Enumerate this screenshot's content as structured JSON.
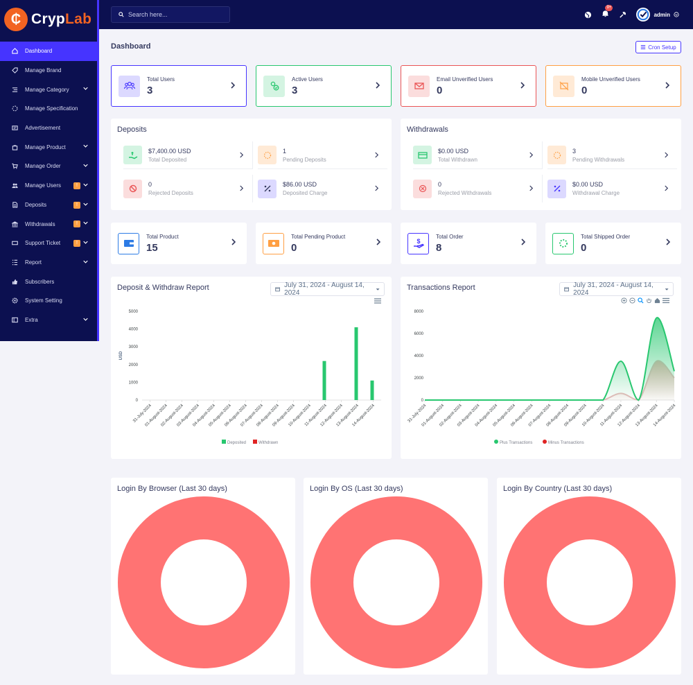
{
  "brand": {
    "part1": "Cryp",
    "part2": "Lab",
    "mark": "₵"
  },
  "search": {
    "placeholder": "Search here..."
  },
  "topbar": {
    "notif_count": "9+",
    "user": "admin"
  },
  "sidebar": {
    "items": [
      {
        "label": "Dashboard",
        "icon": "home-icon"
      },
      {
        "label": "Manage Brand",
        "icon": "tag-icon"
      },
      {
        "label": "Manage Category",
        "icon": "list-icon"
      },
      {
        "label": "Manage Specification",
        "icon": "spinner-icon"
      },
      {
        "label": "Advertisement",
        "icon": "ad-icon"
      },
      {
        "label": "Manage Product",
        "icon": "bag-icon"
      },
      {
        "label": "Manage Order",
        "icon": "cart-icon"
      },
      {
        "label": "Manage Users",
        "icon": "users-icon"
      },
      {
        "label": "Deposits",
        "icon": "file-icon"
      },
      {
        "label": "Withdrawals",
        "icon": "bank-icon"
      },
      {
        "label": "Support Ticket",
        "icon": "ticket-icon"
      },
      {
        "label": "Report",
        "icon": "report-icon"
      },
      {
        "label": "Subscribers",
        "icon": "thumbs-up-icon"
      },
      {
        "label": "System Setting",
        "icon": "gear-icon"
      },
      {
        "label": "Extra",
        "icon": "extra-icon"
      }
    ]
  },
  "page": {
    "title": "Dashboard",
    "cron_label": "Cron Setup"
  },
  "stats": {
    "total_users": {
      "label": "Total Users",
      "value": "3"
    },
    "active_users": {
      "label": "Active Users",
      "value": "3"
    },
    "email_unverified": {
      "label": "Email Unverified Users",
      "value": "0"
    },
    "mobile_unverified": {
      "label": "Mobile Unverified Users",
      "value": "0"
    },
    "total_product": {
      "label": "Total Product",
      "value": "15"
    },
    "total_pending_product": {
      "label": "Total Pending Product",
      "value": "0"
    },
    "total_order": {
      "label": "Total Order",
      "value": "8"
    },
    "total_shipped_order": {
      "label": "Total Shipped Order",
      "value": "0"
    }
  },
  "deposits": {
    "title": "Deposits",
    "total": {
      "value": "$7,400.00 USD",
      "label": "Total Deposited"
    },
    "pending": {
      "value": "1",
      "label": "Pending Deposits"
    },
    "rejected": {
      "value": "0",
      "label": "Rejected Deposits"
    },
    "charge": {
      "value": "$86.00 USD",
      "label": "Deposited Charge"
    }
  },
  "withdrawals": {
    "title": "Withdrawals",
    "total": {
      "value": "$0.00 USD",
      "label": "Total Withdrawn"
    },
    "pending": {
      "value": "3",
      "label": "Pending Withdrawals"
    },
    "rejected": {
      "value": "0",
      "label": "Rejected Withdrawals"
    },
    "charge": {
      "value": "$0.00 USD",
      "label": "Withdrawal Charge"
    }
  },
  "reports": {
    "deposit_title": "Deposit & Withdraw Report",
    "transactions_title": "Transactions Report",
    "date_range": "July 31, 2024 - August 14, 2024"
  },
  "login": {
    "browser": "Login By Browser (Last 30 days)",
    "os": "Login By OS (Last 30 days)",
    "country": "Login By Country (Last 30 days)"
  },
  "chart_data": [
    {
      "type": "bar",
      "title": "Deposit & Withdraw Report",
      "ylabel": "USD",
      "ylim": [
        0,
        5000
      ],
      "yticks": [
        0,
        1000,
        2000,
        3000,
        4000,
        5000
      ],
      "categories": [
        "31-July-2024",
        "01-August-2024",
        "02-August-2024",
        "03-August-2024",
        "04-August-2024",
        "05-August-2024",
        "06-August-2024",
        "07-August-2024",
        "08-August-2024",
        "09-August-2024",
        "10-August-2024",
        "11-August-2024",
        "12-August-2024",
        "13-August-2024",
        "14-August-2024"
      ],
      "series": [
        {
          "name": "Deposited",
          "color": "#28c76f",
          "values": [
            0,
            0,
            0,
            0,
            0,
            0,
            0,
            0,
            0,
            0,
            0,
            2200,
            0,
            4100,
            1100
          ]
        },
        {
          "name": "Withdrawn",
          "color": "#e02424",
          "values": [
            0,
            0,
            0,
            0,
            0,
            0,
            0,
            0,
            0,
            0,
            0,
            0,
            0,
            0,
            0
          ]
        }
      ],
      "legend": "bottom"
    },
    {
      "type": "area",
      "title": "Transactions Report",
      "ylim": [
        0,
        8000
      ],
      "yticks": [
        0,
        2000,
        4000,
        6000,
        8000
      ],
      "categories": [
        "31-July-2024",
        "01-August-2024",
        "02-August-2024",
        "03-August-2024",
        "04-August-2024",
        "05-August-2024",
        "06-August-2024",
        "07-August-2024",
        "08-August-2024",
        "09-August-2024",
        "10-August-2024",
        "11-August-2024",
        "12-August-2024",
        "13-August-2024",
        "14-August-2024"
      ],
      "series": [
        {
          "name": "Plus Transactions",
          "color": "#28c76f",
          "values": [
            0,
            0,
            0,
            0,
            0,
            0,
            0,
            0,
            0,
            0,
            0,
            3500,
            0,
            7400,
            2600
          ]
        },
        {
          "name": "Minus Transactions",
          "color": "#e02424",
          "values": [
            0,
            0,
            0,
            0,
            0,
            0,
            0,
            0,
            0,
            0,
            0,
            600,
            0,
            3500,
            2000
          ]
        }
      ],
      "legend": "bottom"
    }
  ],
  "donut_color": "#ff7373"
}
